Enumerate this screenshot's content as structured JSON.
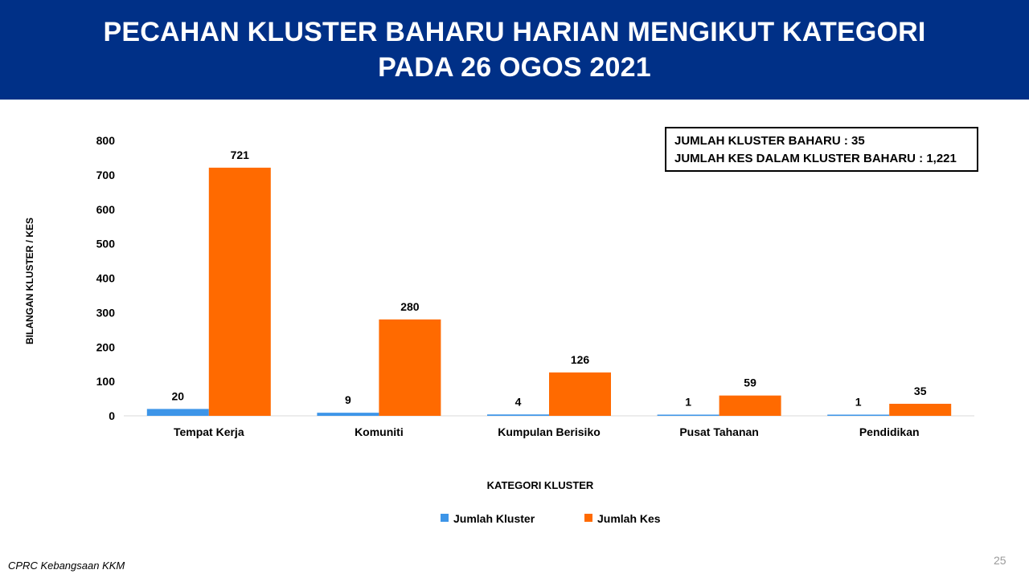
{
  "header": {
    "title_line1": "PECAHAN KLUSTER BAHARU HARIAN MENGIKUT KATEGORI",
    "title_line2": "PADA 26 OGOS 2021"
  },
  "summary": {
    "line1": "JUMLAH KLUSTER BAHARU : 35",
    "line2": "JUMLAH KES DALAM KLUSTER BAHARU : 1,221"
  },
  "footer": {
    "source": "CPRC Kebangsaan KKM",
    "page_number": "25"
  },
  "chart_data": {
    "type": "bar",
    "title": "PECAHAN KLUSTER BAHARU HARIAN MENGIKUT KATEGORI PADA 26 OGOS 2021",
    "xlabel": "KATEGORI KLUSTER",
    "ylabel": "BILANGAN KLUSTER / KES",
    "ylim": [
      0,
      800
    ],
    "yticks": [
      0,
      100,
      200,
      300,
      400,
      500,
      600,
      700,
      800
    ],
    "grid": false,
    "legend_position": "bottom",
    "categories": [
      "Tempat Kerja",
      "Komuniti",
      "Kumpulan Berisiko",
      "Pusat Tahanan",
      "Pendidikan"
    ],
    "series": [
      {
        "name": "Jumlah Kluster",
        "color": "#3d95e8",
        "values": [
          20,
          9,
          4,
          1,
          1
        ]
      },
      {
        "name": "Jumlah Kes",
        "color": "#ff6a00",
        "values": [
          721,
          280,
          126,
          59,
          35
        ]
      }
    ]
  }
}
